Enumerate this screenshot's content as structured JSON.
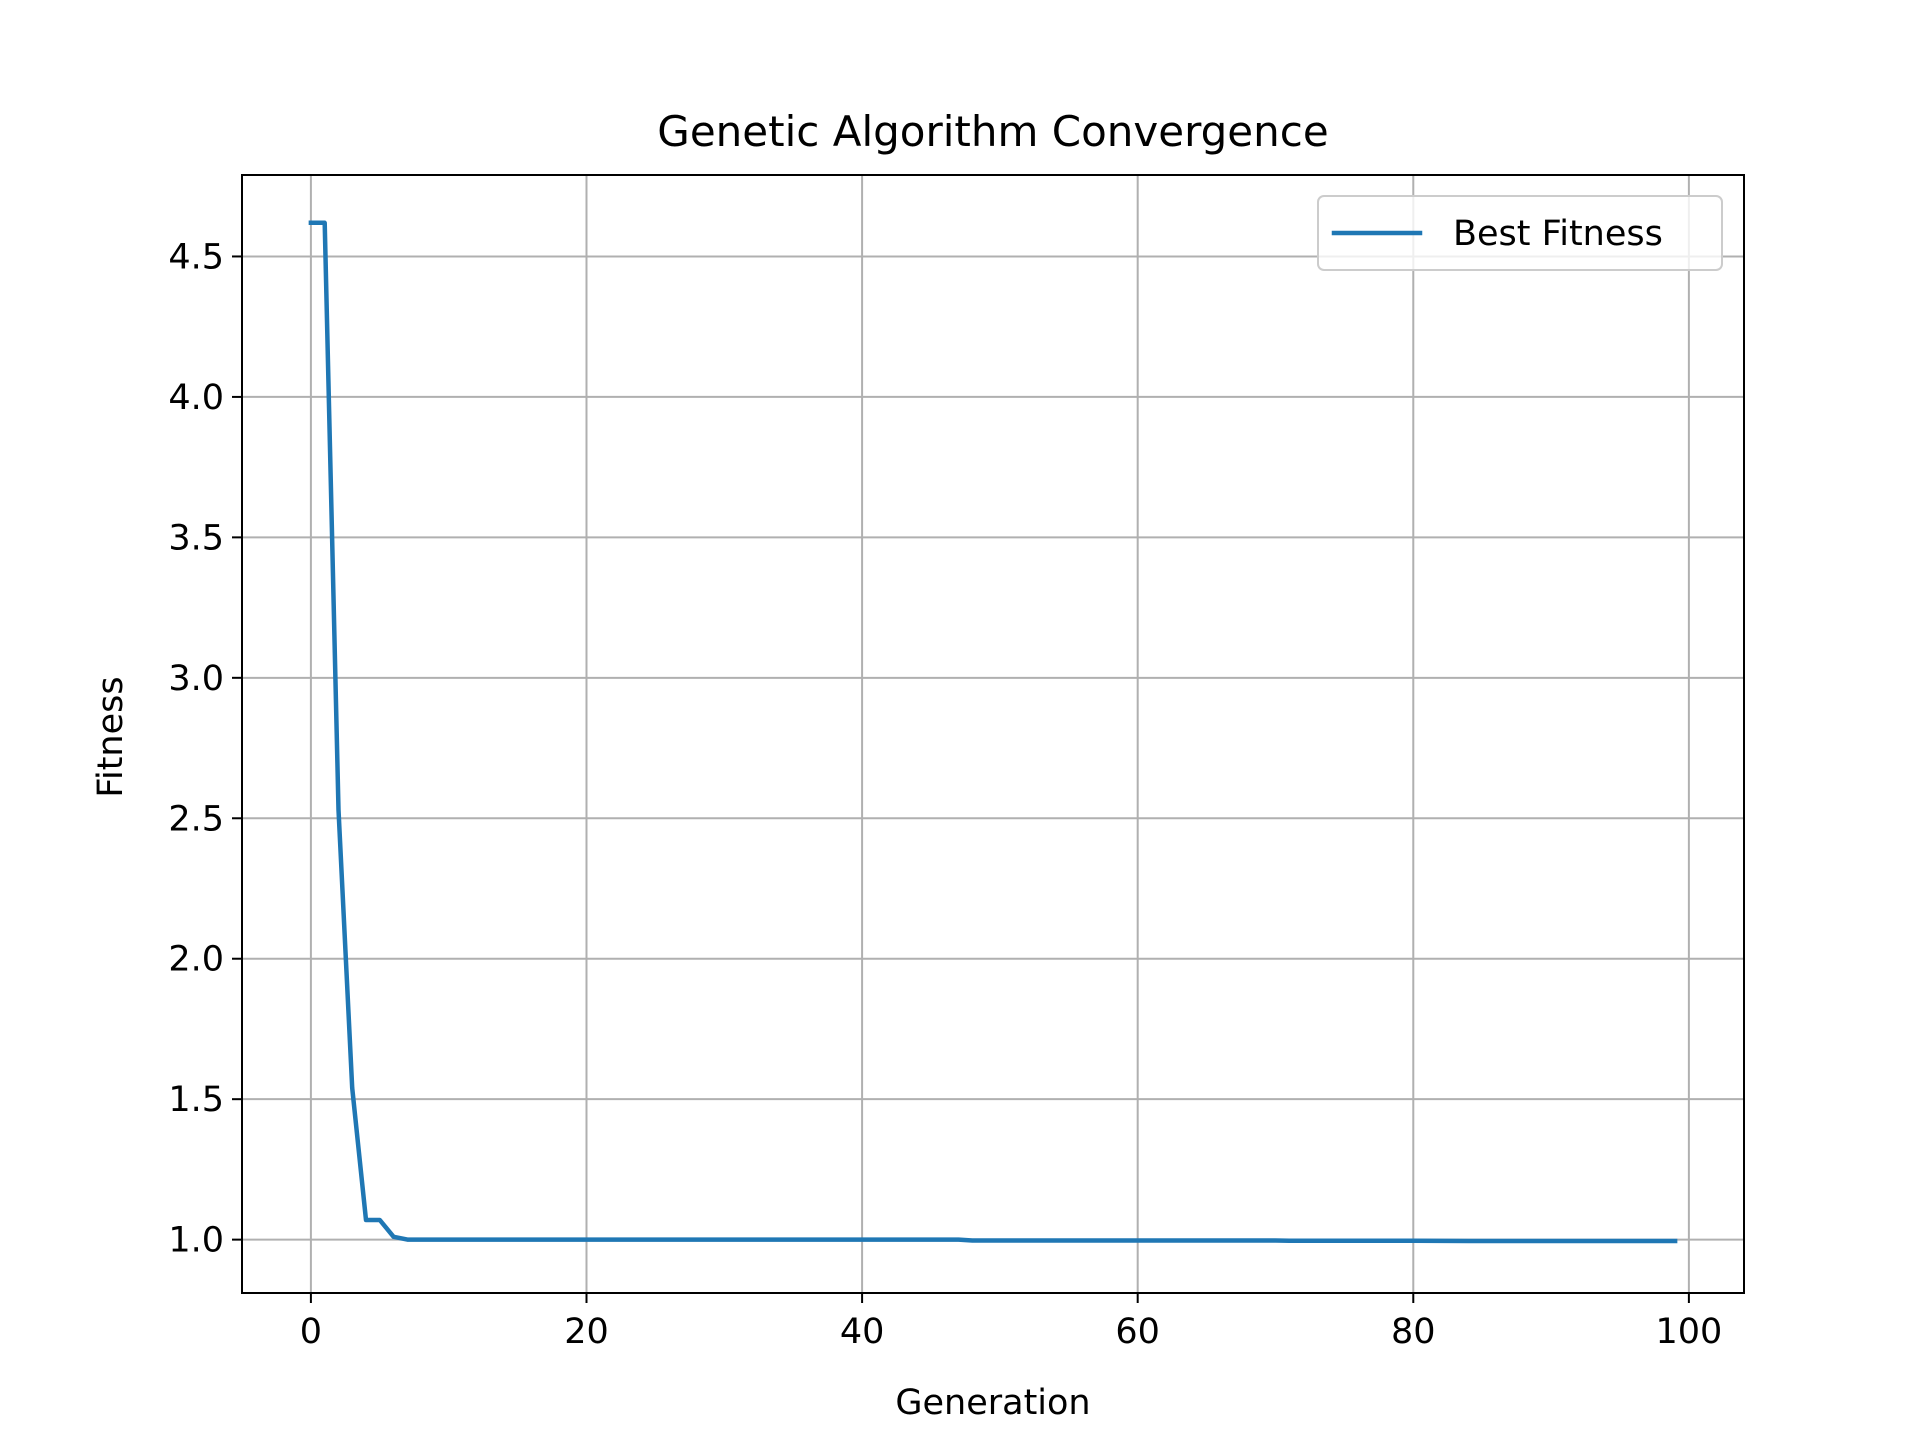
{
  "chart_data": {
    "type": "line",
    "title": "Genetic Algorithm Convergence",
    "xlabel": "Generation",
    "ylabel": "Fitness",
    "xlim": [
      -5,
      104
    ],
    "ylim": [
      0.81,
      4.79
    ],
    "xticks": [
      0,
      20,
      40,
      60,
      80,
      100
    ],
    "yticks": [
      1.0,
      1.5,
      2.0,
      2.5,
      3.0,
      3.5,
      4.0,
      4.5
    ],
    "xtick_labels": [
      "0",
      "20",
      "40",
      "60",
      "80",
      "100"
    ],
    "ytick_labels": [
      "1.0",
      "1.5",
      "2.0",
      "2.5",
      "3.0",
      "3.5",
      "4.0",
      "4.5"
    ],
    "grid": true,
    "legend_position": "top-right",
    "series": [
      {
        "name": "Best Fitness",
        "color": "#1f77b4",
        "x": [
          0,
          1,
          2,
          3,
          4,
          5,
          6,
          7,
          10,
          20,
          30,
          40,
          47,
          48,
          60,
          70,
          71,
          80,
          84,
          90,
          99
        ],
        "y": [
          4.62,
          4.62,
          2.53,
          1.54,
          1.07,
          1.07,
          1.01,
          1.0,
          1.0,
          1.0,
          1.0,
          1.0,
          1.0,
          0.997,
          0.997,
          0.997,
          0.996,
          0.996,
          0.995,
          0.995,
          0.995
        ]
      }
    ]
  }
}
